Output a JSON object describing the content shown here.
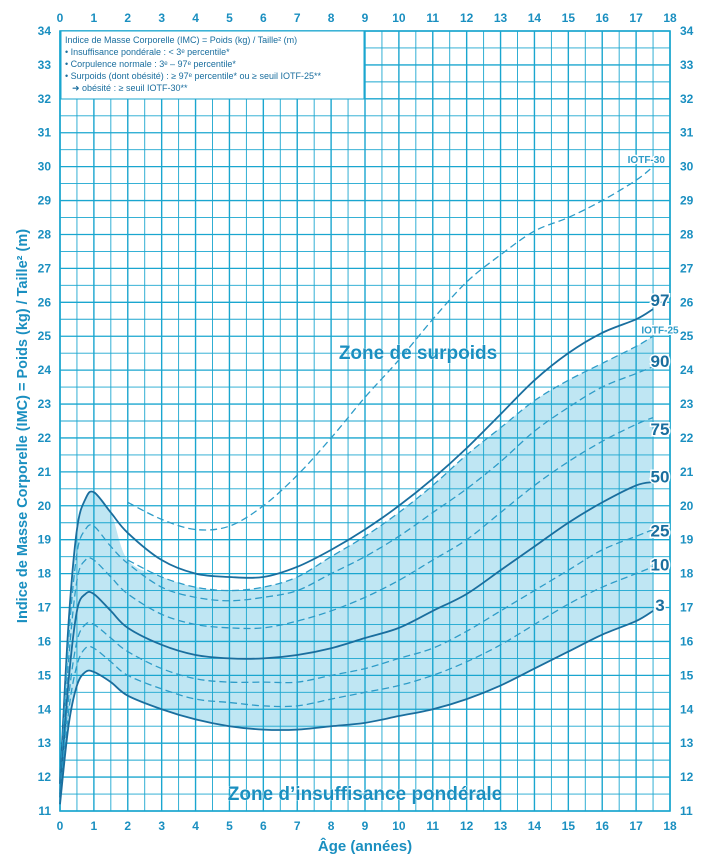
{
  "chart_data": {
    "type": "line",
    "xlabel": "Âge (années)",
    "ylabel": "Indice de Masse Corporelle (IMC) = Poids (kg) / Taille² (m)",
    "xlim": [
      0,
      18
    ],
    "ylim": [
      11,
      34
    ],
    "x_ticks": [
      "0",
      "1",
      "2",
      "3",
      "4",
      "5",
      "6",
      "7",
      "8",
      "9",
      "10",
      "11",
      "12",
      "13",
      "14",
      "15",
      "16",
      "17",
      "18"
    ],
    "y_ticks": [
      "11",
      "12",
      "13",
      "14",
      "15",
      "16",
      "17",
      "18",
      "19",
      "20",
      "21",
      "22",
      "23",
      "24",
      "25",
      "26",
      "27",
      "28",
      "29",
      "30",
      "31",
      "32",
      "33",
      "34"
    ],
    "grid": true,
    "legend": {
      "title": "Indice de Masse Corporelle (IMC) = Poids (kg) / Taille² (m)",
      "lines": [
        "• Insuffisance pondérale : < 3ᵉ percentile*",
        "• Corpulence normale : 3ᵉ – 97ᵉ percentile*",
        "• Surpoids (dont obésité) : ≥ 97ᵉ percentile* ou ≥ seuil IOTF-25**",
        "➜ obésité : ≥ seuil IOTF-30**"
      ]
    },
    "zones": {
      "overweight": "Zone de surpoids",
      "underweight": "Zone d’insuffisance pondérale"
    },
    "colors": {
      "grid": "#1aa6cf",
      "solid": "#1a6e9e",
      "dashed": "#2e9cc8",
      "band": "#bfe6f3",
      "text": "#1a8fc0"
    },
    "series": [
      {
        "name": "97",
        "style": "solid",
        "x": [
          0,
          0.25,
          0.5,
          0.75,
          1,
          1.5,
          2,
          3,
          4,
          5,
          6,
          7,
          8,
          9,
          10,
          11,
          12,
          13,
          14,
          15,
          16,
          17,
          17.5
        ],
        "values": [
          11.8,
          16.5,
          19.3,
          20.2,
          20.4,
          19.8,
          19.2,
          18.4,
          18.0,
          17.9,
          17.9,
          18.2,
          18.7,
          19.3,
          20.0,
          20.8,
          21.7,
          22.7,
          23.7,
          24.5,
          25.1,
          25.5,
          25.8
        ]
      },
      {
        "name": "IOTF-30",
        "style": "dashed",
        "x": [
          2,
          3,
          4,
          5,
          6,
          7,
          8,
          9,
          10,
          11,
          12,
          13,
          14,
          15,
          16,
          17,
          17.5
        ],
        "values": [
          20.1,
          19.6,
          19.3,
          19.4,
          20.0,
          20.9,
          22.0,
          23.2,
          24.3,
          25.5,
          26.6,
          27.4,
          28.1,
          28.5,
          29.0,
          29.6,
          30.0
        ]
      },
      {
        "name": "IOTF-25",
        "style": "dashed",
        "x": [
          2,
          3,
          4,
          5,
          6,
          7,
          8,
          9,
          10,
          11,
          12,
          13,
          14,
          15,
          16,
          17,
          17.5
        ],
        "values": [
          18.4,
          17.9,
          17.6,
          17.5,
          17.6,
          17.9,
          18.5,
          19.1,
          19.8,
          20.6,
          21.5,
          22.3,
          23.1,
          23.7,
          24.2,
          24.7,
          25.0
        ]
      },
      {
        "name": "90",
        "style": "dashed",
        "x": [
          0,
          0.25,
          0.5,
          0.75,
          1,
          1.5,
          2,
          3,
          4,
          5,
          6,
          7,
          8,
          9,
          10,
          11,
          12,
          13,
          14,
          15,
          16,
          17,
          17.5
        ],
        "values": [
          11.6,
          16.0,
          18.6,
          19.3,
          19.4,
          18.8,
          18.3,
          17.6,
          17.3,
          17.2,
          17.3,
          17.5,
          18.0,
          18.5,
          19.1,
          19.8,
          20.5,
          21.3,
          22.2,
          22.9,
          23.5,
          23.9,
          24.1
        ]
      },
      {
        "name": "75",
        "style": "dashed",
        "x": [
          0,
          0.25,
          0.5,
          0.75,
          1,
          1.5,
          2,
          3,
          4,
          5,
          6,
          7,
          8,
          9,
          10,
          11,
          12,
          13,
          14,
          15,
          16,
          17,
          17.5
        ],
        "values": [
          11.5,
          15.4,
          17.8,
          18.4,
          18.4,
          17.9,
          17.4,
          16.8,
          16.5,
          16.4,
          16.4,
          16.6,
          16.9,
          17.3,
          17.8,
          18.4,
          19.0,
          19.8,
          20.6,
          21.3,
          21.9,
          22.4,
          22.6
        ]
      },
      {
        "name": "50",
        "style": "solid",
        "x": [
          0,
          0.25,
          0.5,
          0.75,
          1,
          1.5,
          2,
          3,
          4,
          5,
          6,
          7,
          8,
          9,
          10,
          11,
          12,
          13,
          14,
          15,
          16,
          17,
          17.5
        ],
        "values": [
          11.4,
          14.8,
          16.9,
          17.4,
          17.4,
          16.9,
          16.4,
          15.9,
          15.6,
          15.5,
          15.5,
          15.6,
          15.8,
          16.1,
          16.4,
          16.9,
          17.4,
          18.1,
          18.8,
          19.5,
          20.1,
          20.6,
          20.7
        ]
      },
      {
        "name": "25",
        "style": "dashed",
        "x": [
          0,
          0.25,
          0.5,
          0.75,
          1,
          1.5,
          2,
          3,
          4,
          5,
          6,
          7,
          8,
          9,
          10,
          11,
          12,
          13,
          14,
          15,
          16,
          17,
          17.5
        ],
        "values": [
          11.3,
          14.3,
          16.0,
          16.5,
          16.5,
          16.1,
          15.7,
          15.2,
          14.9,
          14.8,
          14.8,
          14.8,
          15.0,
          15.2,
          15.5,
          15.8,
          16.3,
          16.9,
          17.5,
          18.1,
          18.7,
          19.1,
          19.3
        ]
      },
      {
        "name": "10",
        "style": "dashed",
        "x": [
          0,
          0.25,
          0.5,
          0.75,
          1,
          1.5,
          2,
          3,
          4,
          5,
          6,
          7,
          8,
          9,
          10,
          11,
          12,
          13,
          14,
          15,
          16,
          17,
          17.5
        ],
        "values": [
          11.2,
          13.9,
          15.3,
          15.8,
          15.8,
          15.4,
          15.0,
          14.6,
          14.3,
          14.2,
          14.1,
          14.1,
          14.3,
          14.5,
          14.7,
          15.0,
          15.4,
          15.9,
          16.5,
          17.1,
          17.6,
          18.0,
          18.2
        ]
      },
      {
        "name": "3",
        "style": "solid",
        "x": [
          0,
          0.25,
          0.5,
          0.75,
          1,
          1.5,
          2,
          3,
          4,
          5,
          6,
          7,
          8,
          9,
          10,
          11,
          12,
          13,
          14,
          15,
          16,
          17,
          17.5
        ],
        "values": [
          11.2,
          13.5,
          14.7,
          15.1,
          15.1,
          14.8,
          14.4,
          14.0,
          13.7,
          13.5,
          13.4,
          13.4,
          13.5,
          13.6,
          13.8,
          14.0,
          14.3,
          14.7,
          15.2,
          15.7,
          16.2,
          16.6,
          16.9
        ]
      }
    ],
    "end_labels": [
      {
        "text": "97",
        "y": 26.1,
        "size": "large"
      },
      {
        "text": "IOTF-25",
        "y": 25.2,
        "size": "small"
      },
      {
        "text": "90",
        "y": 24.3,
        "size": "large"
      },
      {
        "text": "75",
        "y": 22.3,
        "size": "large"
      },
      {
        "text": "50",
        "y": 20.9,
        "size": "large"
      },
      {
        "text": "25",
        "y": 19.3,
        "size": "large"
      },
      {
        "text": "10",
        "y": 18.3,
        "size": "large"
      },
      {
        "text": "3",
        "y": 17.1,
        "size": "large"
      }
    ],
    "iotf30_label": {
      "text": "IOTF-30",
      "x": 17.3,
      "y": 30.2
    }
  }
}
